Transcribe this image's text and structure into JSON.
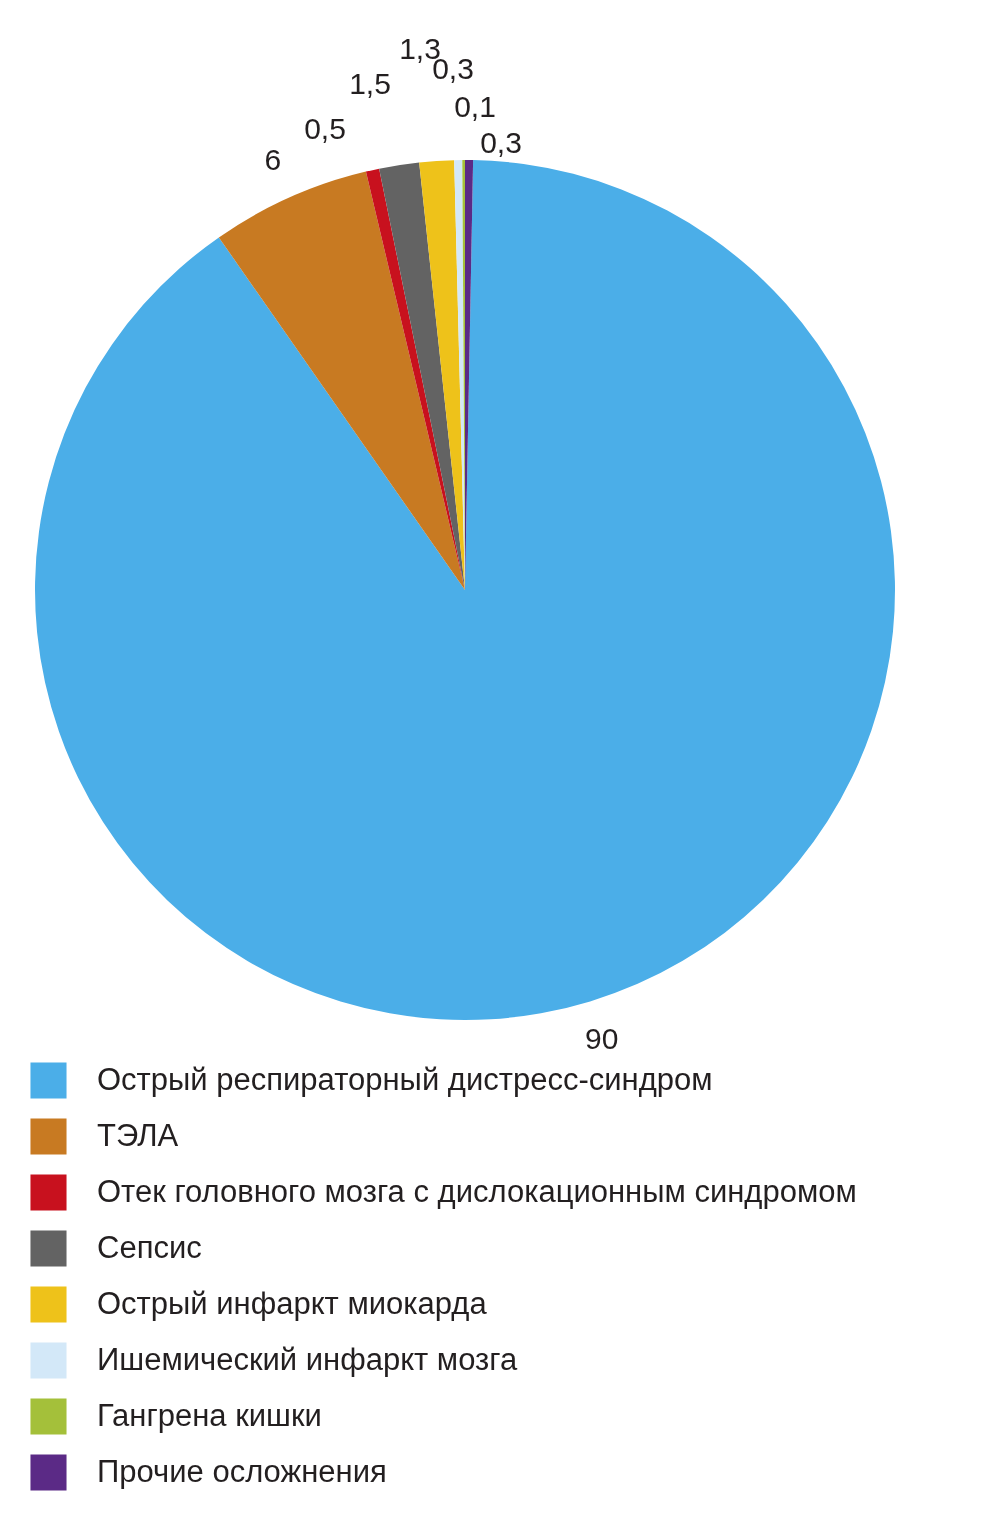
{
  "chart_data": {
    "type": "pie",
    "categories": [
      "Острый респираторный дистресс-синдром",
      "ТЭЛА",
      "Отек головного мозга с дислокационным синдромом",
      "Сепсис",
      "Острый инфаркт миокарда",
      "Ишемический инфаркт мозга",
      "Гангрена кишки",
      "Прочие осложнения"
    ],
    "values": [
      90,
      6,
      0.5,
      1.5,
      1.3,
      0.3,
      0.1,
      0.3
    ],
    "colors": [
      "#4baee8",
      "#c87a22",
      "#c8111e",
      "#636363",
      "#eec21a",
      "#d3e8f8",
      "#a4c03a",
      "#5b2a86"
    ],
    "value_labels": [
      "90",
      "6",
      "0,5",
      "1,5",
      "1,3",
      "0,3",
      "0,1",
      "0,3"
    ],
    "legend": "bottom"
  }
}
